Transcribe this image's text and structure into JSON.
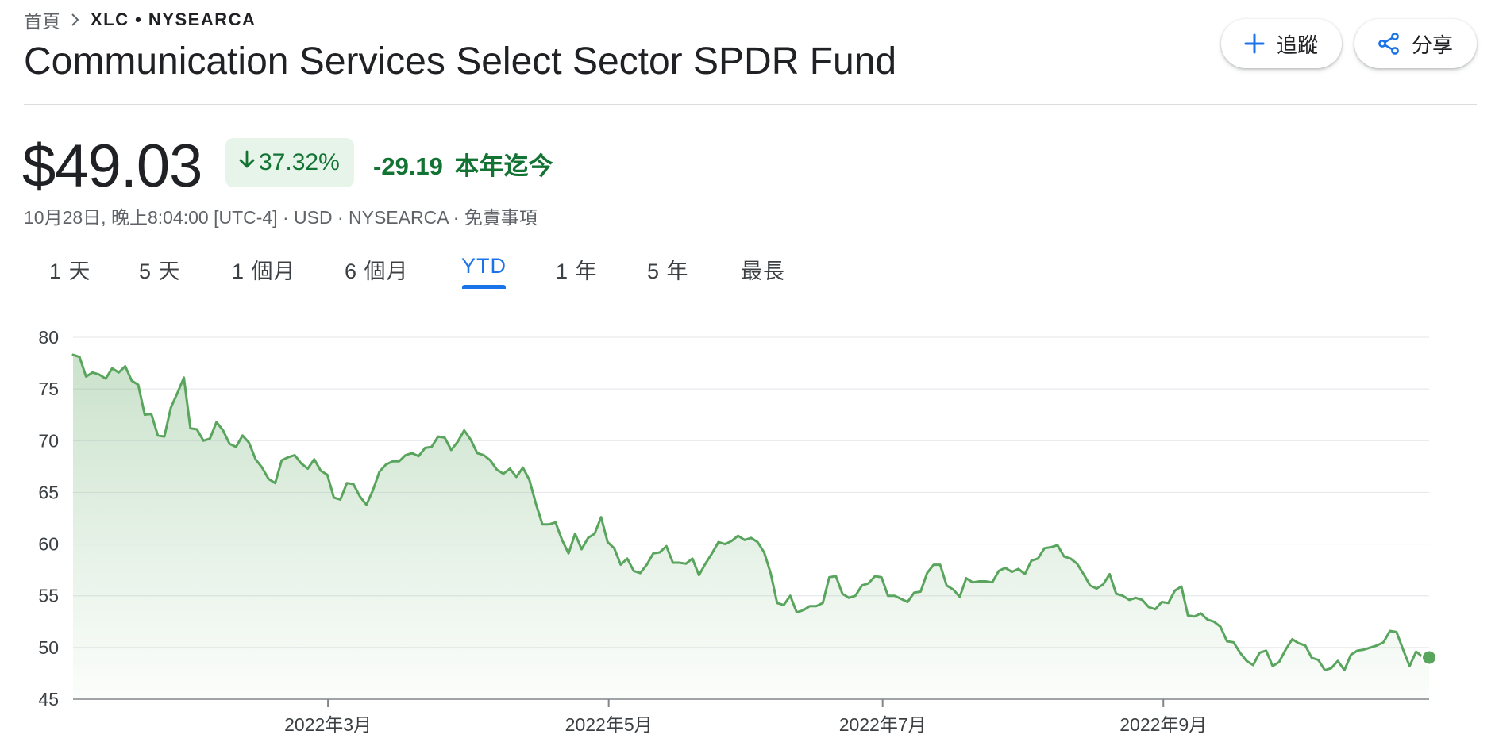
{
  "breadcrumb": {
    "home": "首頁",
    "ticker": "XLC • NYSEARCA"
  },
  "title": "Communication Services Select Sector SPDR Fund",
  "actions": {
    "follow_label": "追蹤",
    "share_label": "分享"
  },
  "quote": {
    "price": "$49.03",
    "change_percent": "37.32%",
    "change_amount": "-29.19",
    "period_label": "本年迄今",
    "meta": "10月28日, 晚上8:04:00 [UTC-4] · USD · NYSEARCA · 免責事項"
  },
  "tabs": [
    {
      "label": "1 天"
    },
    {
      "label": "5 天"
    },
    {
      "label": "1 個月"
    },
    {
      "label": "6 個月"
    },
    {
      "label": "YTD"
    },
    {
      "label": "1 年"
    },
    {
      "label": "5 年"
    },
    {
      "label": "最長"
    }
  ],
  "active_tab": "YTD",
  "colors": {
    "up_down_green": "#137333",
    "line": "#5aa55e",
    "accent": "#1a73e8"
  },
  "icons": {
    "breadcrumb_sep": "chevron-right-icon",
    "follow": "plus-icon",
    "share": "share-icon",
    "change": "arrow-down-icon"
  },
  "chart_data": {
    "type": "line",
    "series": [
      {
        "values": [
          78.3,
          78.1,
          76.2,
          76.6,
          76.4,
          76,
          77,
          76.6,
          77.2,
          75.8,
          75.4,
          72.5,
          72.6,
          70.5,
          70.4,
          73.2,
          74.6,
          76.1,
          71.2,
          71.1,
          70,
          70.2,
          71.8,
          71,
          69.7,
          69.4,
          70.5,
          69.8,
          68.2,
          67.4,
          66.3,
          65.9,
          68.1,
          68.4,
          68.6,
          67.8,
          67.3,
          68.2,
          67.1,
          66.7,
          64.5,
          64.3,
          65.9,
          65.8,
          64.6,
          63.8,
          65.2,
          67,
          67.7,
          68,
          68,
          68.6,
          68.8,
          68.5,
          69.3,
          69.4,
          70.4,
          70.3,
          69.1,
          69.9,
          71,
          70.1,
          68.8,
          68.6,
          68.1,
          67.2,
          66.8,
          67.3,
          66.5,
          67.4,
          66.2,
          63.9,
          61.9,
          61.9,
          62.1,
          60.4,
          59.1,
          61,
          59.5,
          60.6,
          61,
          62.6,
          60.2,
          59.6,
          58,
          58.6,
          57.4,
          57.2,
          58,
          59.1,
          59.2,
          59.8,
          58.2,
          58.2,
          58.1,
          58.6,
          57,
          58.1,
          59.1,
          60.2,
          60,
          60.3,
          60.8,
          60.4,
          60.6,
          60.2,
          59.2,
          57.2,
          54.3,
          54.1,
          55,
          53.4,
          53.6,
          54,
          54,
          54.3,
          56.8,
          56.9,
          55.2,
          54.8,
          55,
          56,
          56.2,
          56.9,
          56.8,
          55,
          55,
          54.7,
          54.4,
          55.3,
          55.4,
          57.2,
          58,
          58,
          56,
          55.6,
          54.9,
          56.7,
          56.3,
          56.4,
          56.4,
          56.3,
          57.4,
          57.7,
          57.3,
          57.6,
          57.1,
          58.4,
          58.6,
          59.6,
          59.7,
          59.9,
          58.8,
          58.6,
          58.1,
          57.1,
          56,
          55.7,
          56.1,
          57.1,
          55.2,
          55,
          54.6,
          54.8,
          54.6,
          53.9,
          53.7,
          54.4,
          54.3,
          55.5,
          55.9,
          53.1,
          53,
          53.3,
          52.7,
          52.5,
          52,
          50.6,
          50.5,
          49.5,
          48.7,
          48.3,
          49.5,
          49.7,
          48.2,
          48.6,
          49.8,
          50.8,
          50.4,
          50.2,
          49,
          48.8,
          47.8,
          48,
          48.7,
          47.8,
          49.3,
          49.7,
          49.8,
          50,
          50.2,
          50.5,
          51.6,
          51.5,
          49.8,
          48.2,
          49.6,
          49.1,
          49.03
        ]
      }
    ],
    "x_tick_labels": [
      "2022年3月",
      "2022年5月",
      "2022年7月",
      "2022年9月"
    ],
    "y_ticks": [
      45,
      50,
      55,
      60,
      65,
      70,
      75,
      80
    ],
    "ylim": [
      45,
      80
    ],
    "grid": true,
    "area_fill": true,
    "end_marker": true
  }
}
